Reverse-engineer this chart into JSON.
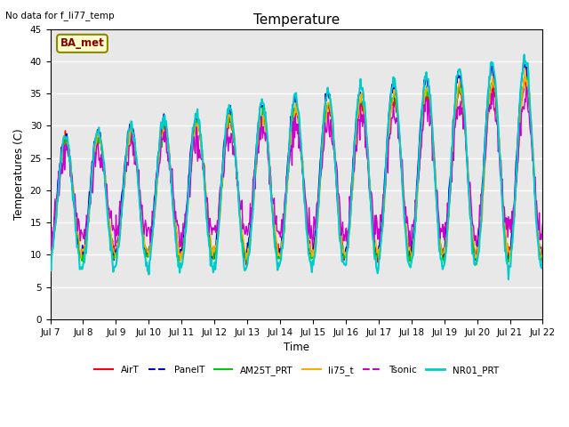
{
  "title": "Temperature",
  "xlabel": "Time",
  "ylabel": "Temperatures (C)",
  "no_data_text": "No data for f_li77_temp",
  "ba_met_label": "BA_met",
  "ylim": [
    0,
    45
  ],
  "yticks": [
    0,
    5,
    10,
    15,
    20,
    25,
    30,
    35,
    40,
    45
  ],
  "x_labels": [
    "Jul 7",
    "Jul 8",
    "Jul 9",
    "Jul 10",
    "Jul 11",
    "Jul 12",
    "Jul 13",
    "Jul 14",
    "Jul 15",
    "Jul 16",
    "Jul 17",
    "Jul 18",
    "Jul 19",
    "Jul 20",
    "Jul 21",
    "Jul 22"
  ],
  "series": [
    {
      "name": "AirT",
      "color": "#ff0000",
      "lw": 1.0,
      "ls": "-"
    },
    {
      "name": "PanelT",
      "color": "#0000cc",
      "lw": 1.0,
      "ls": "-"
    },
    {
      "name": "AM25T_PRT",
      "color": "#00cc00",
      "lw": 1.0,
      "ls": "-"
    },
    {
      "name": "li75_t",
      "color": "#ffaa00",
      "lw": 1.0,
      "ls": "-"
    },
    {
      "name": "Tsonic",
      "color": "#cc00cc",
      "lw": 1.0,
      "ls": "-"
    },
    {
      "name": "NR01_PRT",
      "color": "#00cccc",
      "lw": 1.5,
      "ls": "-"
    }
  ],
  "legend_ls": [
    "-",
    "--",
    "-",
    "-",
    "--",
    "-"
  ],
  "bg_color": "#e8e8e8",
  "grid_color": "#ffffff",
  "fig_bg": "#ffffff",
  "figsize": [
    6.4,
    4.8
  ],
  "dpi": 100
}
